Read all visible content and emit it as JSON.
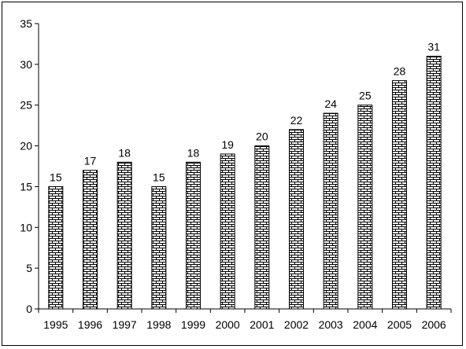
{
  "chart_data": {
    "type": "bar",
    "title": "",
    "xlabel": "",
    "ylabel": "",
    "categories": [
      "1995",
      "1996",
      "1997",
      "1998",
      "1999",
      "2000",
      "2001",
      "2002",
      "2003",
      "2004",
      "2005",
      "2006"
    ],
    "values": [
      15,
      17,
      18,
      15,
      18,
      19,
      20,
      22,
      24,
      25,
      28,
      31
    ],
    "data_labels": [
      "15",
      "17",
      "18",
      "15",
      "18",
      "19",
      "20",
      "22",
      "24",
      "25",
      "28",
      "31"
    ],
    "ylim": [
      0,
      35
    ],
    "yticks": [
      "0",
      "5",
      "10",
      "15",
      "20",
      "25",
      "30",
      "35"
    ],
    "grid": false,
    "legend": "none",
    "bar_fill": "brick-pattern",
    "colors": {
      "bar_stroke": "#000000",
      "background": "#ffffff"
    }
  }
}
